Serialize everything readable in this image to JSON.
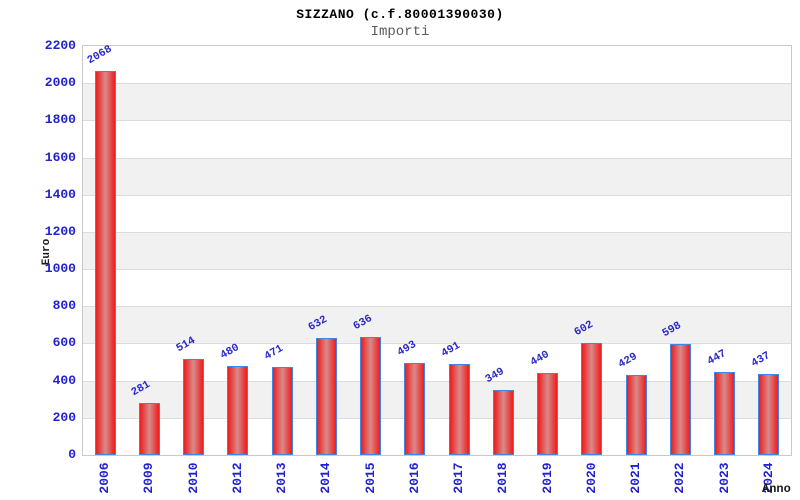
{
  "header": {
    "title": "SIZZANO (c.f.80001390030)",
    "subtitle": "Importi"
  },
  "chart_data": {
    "type": "bar",
    "title": "SIZZANO (c.f.80001390030)",
    "subtitle": "Importi",
    "xlabel": "Anno",
    "ylabel": "Euro",
    "categories": [
      "2006",
      "2009",
      "2010",
      "2012",
      "2013",
      "2014",
      "2015",
      "2016",
      "2017",
      "2018",
      "2019",
      "2020",
      "2021",
      "2022",
      "2023",
      "2024"
    ],
    "values": [
      2068,
      281,
      514,
      480,
      471,
      632,
      636,
      493,
      491,
      349,
      440,
      602,
      429,
      598,
      447,
      437
    ],
    "ylim": [
      0,
      2200
    ],
    "yticks": [
      0,
      200,
      400,
      600,
      800,
      1000,
      1200,
      1400,
      1600,
      1800,
      2000,
      2200
    ],
    "grid": "horizontal-bands-alternating",
    "legend": "none",
    "bar_label_rotation_deg": -30,
    "x_tick_rotation_deg": -90
  },
  "colors": {
    "tick_label": "#2222cc",
    "value_label": "#2a2ac8",
    "bar_border": "#4285e8",
    "bar_red": "#ee1c1c",
    "bar_center": "#d98a8a",
    "band_gray": "#f1f1f1",
    "band_white": "#ffffff",
    "gridline": "#dcdcdc",
    "plot_border": "#c9c9c9",
    "title": "#000000",
    "subtitle": "#5c5c5c",
    "axis_title": "#1a1a1a",
    "background": "#ffffff"
  }
}
